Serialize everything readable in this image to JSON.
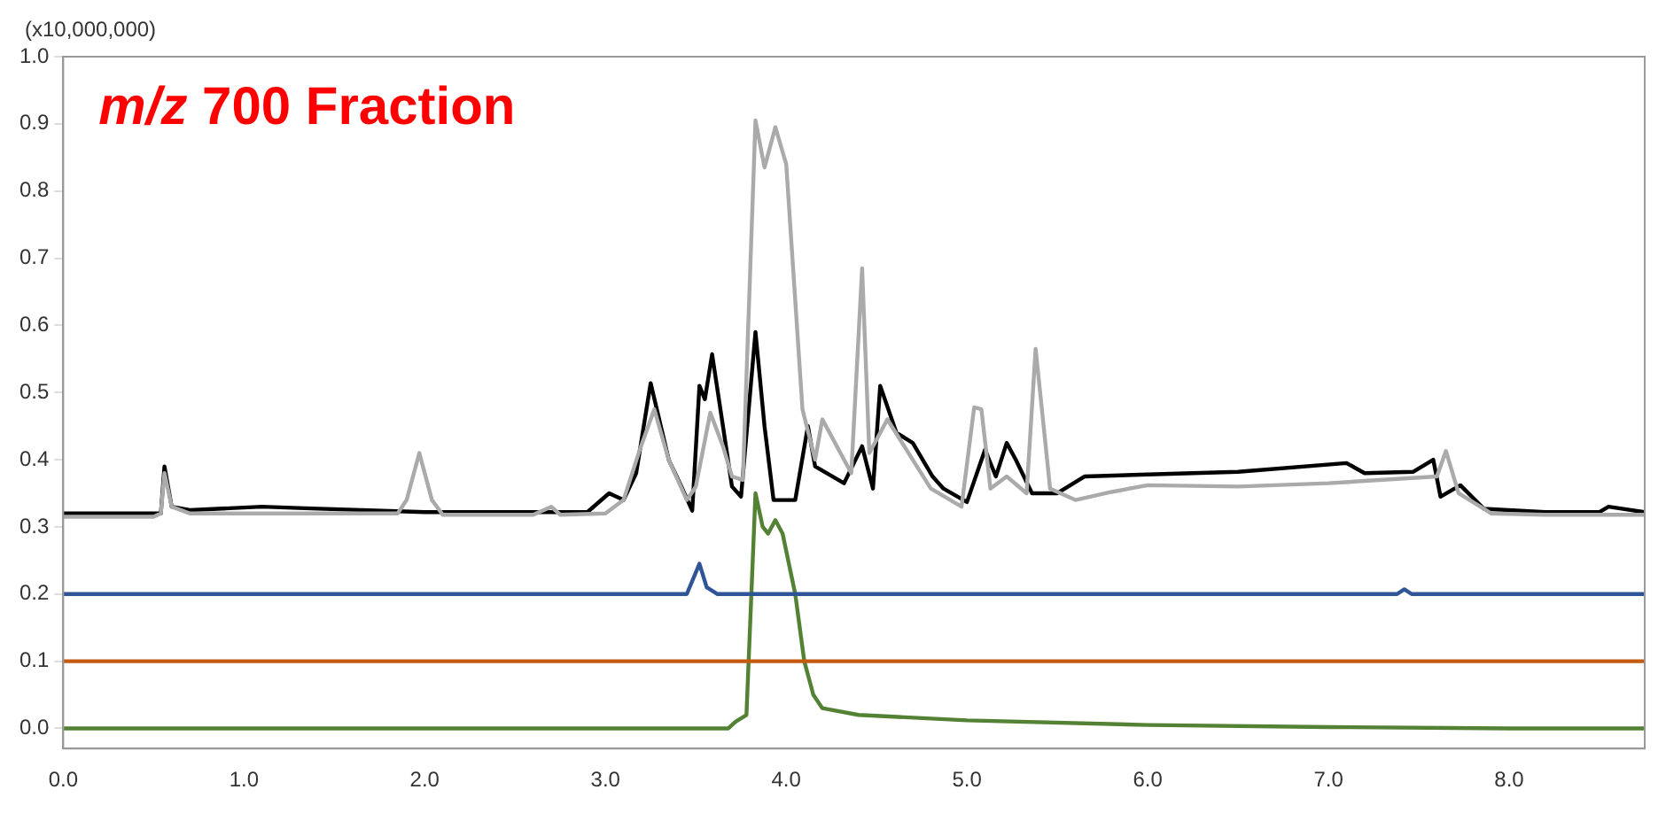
{
  "chart_data": {
    "type": "line",
    "title": "m/z 700 Fraction",
    "ylabel": "(x10,000,000)",
    "xlim": [
      0,
      8.75
    ],
    "ylim": [
      -0.03,
      1.0
    ],
    "xticks": [
      {
        "value": 0,
        "label": "0.0"
      },
      {
        "value": 1,
        "label": "1.0"
      },
      {
        "value": 2,
        "label": "2.0"
      },
      {
        "value": 3,
        "label": "3.0"
      },
      {
        "value": 4,
        "label": "4.0"
      },
      {
        "value": 5,
        "label": "5.0"
      },
      {
        "value": 6,
        "label": "6.0"
      },
      {
        "value": 7,
        "label": "7.0"
      },
      {
        "value": 8,
        "label": "8.0"
      }
    ],
    "yticks": [
      {
        "value": 0,
        "label": "0.0"
      },
      {
        "value": 0.1,
        "label": "0.1"
      },
      {
        "value": 0.2,
        "label": "0.2"
      },
      {
        "value": 0.3,
        "label": "0.3"
      },
      {
        "value": 0.4,
        "label": "0.4"
      },
      {
        "value": 0.5,
        "label": "0.5"
      },
      {
        "value": 0.6,
        "label": "0.6"
      },
      {
        "value": 0.7,
        "label": "0.7"
      },
      {
        "value": 0.8,
        "label": "0.8"
      },
      {
        "value": 0.9,
        "label": "0.9"
      },
      {
        "value": 1,
        "label": "1.0"
      }
    ],
    "grid": false,
    "legend": false,
    "marker": "none",
    "line_style": "solid",
    "series": [
      {
        "color": "#aaaaaa",
        "x": [
          0,
          0.5,
          0.54,
          0.56,
          0.6,
          0.7,
          1.85,
          1.9,
          1.97,
          2.04,
          2.1,
          2.6,
          2.7,
          2.75,
          3.0,
          3.1,
          3.19,
          3.27,
          3.35,
          3.45,
          3.5,
          3.58,
          3.65,
          3.7,
          3.76,
          3.83,
          3.88,
          3.94,
          4.0,
          4.09,
          4.16,
          4.2,
          4.28,
          4.36,
          4.42,
          4.46,
          4.56,
          4.7,
          4.8,
          4.97,
          5.04,
          5.08,
          5.13,
          5.22,
          5.33,
          5.38,
          5.46,
          5.6,
          5.8,
          6.0,
          6.5,
          7.0,
          7.6,
          7.65,
          7.72,
          7.9,
          8.2,
          8.75
        ],
        "values": [
          0.315,
          0.315,
          0.32,
          0.38,
          0.33,
          0.32,
          0.32,
          0.34,
          0.41,
          0.34,
          0.318,
          0.318,
          0.33,
          0.318,
          0.32,
          0.34,
          0.415,
          0.475,
          0.4,
          0.34,
          0.36,
          0.47,
          0.42,
          0.375,
          0.37,
          0.905,
          0.835,
          0.895,
          0.84,
          0.475,
          0.4,
          0.46,
          0.42,
          0.38,
          0.685,
          0.41,
          0.46,
          0.4,
          0.357,
          0.33,
          0.478,
          0.475,
          0.357,
          0.375,
          0.35,
          0.565,
          0.357,
          0.34,
          0.352,
          0.362,
          0.36,
          0.365,
          0.375,
          0.413,
          0.35,
          0.32,
          0.318,
          0.318
        ]
      },
      {
        "color": "#000000",
        "x": [
          0,
          0.54,
          0.56,
          0.6,
          0.7,
          1.1,
          1.3,
          2.0,
          2.7,
          2.9,
          3.02,
          3.1,
          3.17,
          3.25,
          3.35,
          3.42,
          3.48,
          3.52,
          3.55,
          3.59,
          3.65,
          3.7,
          3.75,
          3.83,
          3.88,
          3.93,
          4.05,
          4.12,
          4.16,
          4.32,
          4.42,
          4.48,
          4.52,
          4.61,
          4.7,
          4.81,
          4.87,
          5.0,
          5.1,
          5.16,
          5.22,
          5.27,
          5.36,
          5.5,
          5.65,
          6.0,
          6.5,
          7.1,
          7.2,
          7.47,
          7.58,
          7.62,
          7.73,
          7.86,
          8.2,
          8.5,
          8.55,
          8.75
        ],
        "values": [
          0.32,
          0.32,
          0.39,
          0.33,
          0.325,
          0.33,
          0.328,
          0.322,
          0.322,
          0.322,
          0.35,
          0.34,
          0.38,
          0.514,
          0.4,
          0.36,
          0.324,
          0.51,
          0.49,
          0.557,
          0.45,
          0.36,
          0.345,
          0.59,
          0.45,
          0.34,
          0.34,
          0.45,
          0.39,
          0.365,
          0.42,
          0.357,
          0.51,
          0.44,
          0.425,
          0.375,
          0.357,
          0.337,
          0.415,
          0.375,
          0.425,
          0.4,
          0.35,
          0.35,
          0.375,
          0.378,
          0.382,
          0.395,
          0.38,
          0.382,
          0.4,
          0.345,
          0.362,
          0.327,
          0.322,
          0.322,
          0.33,
          0.322
        ]
      },
      {
        "color": "#2f5597",
        "x": [
          0,
          3.45,
          3.52,
          3.56,
          3.62,
          7.38,
          7.42,
          7.46,
          8.75
        ],
        "values": [
          0.2,
          0.2,
          0.245,
          0.21,
          0.2,
          0.2,
          0.207,
          0.2,
          0.2
        ]
      },
      {
        "color": "#c55a11",
        "x": [
          0,
          8.75
        ],
        "values": [
          0.1,
          0.1
        ]
      },
      {
        "color": "#548235",
        "x": [
          0,
          3.68,
          3.72,
          3.78,
          3.83,
          3.87,
          3.9,
          3.94,
          3.98,
          4.05,
          4.1,
          4.15,
          4.2,
          4.4,
          5.0,
          6.0,
          7.0,
          8.0,
          8.75
        ],
        "values": [
          0,
          0,
          0.01,
          0.02,
          0.35,
          0.3,
          0.29,
          0.31,
          0.29,
          0.2,
          0.1,
          0.05,
          0.03,
          0.02,
          0.012,
          0.005,
          0.002,
          0,
          0
        ]
      }
    ]
  }
}
